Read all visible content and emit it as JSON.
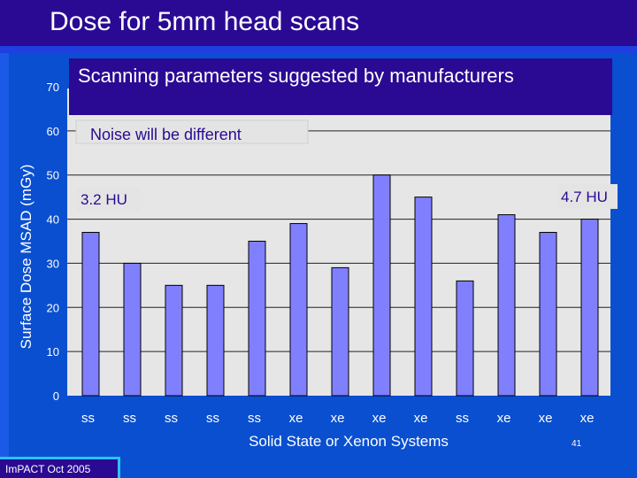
{
  "slide": {
    "title": "Dose for 5mm head scans",
    "footer": "ImPACT Oct 2005",
    "page_number": "41"
  },
  "colors": {
    "background": "#0a4fd0",
    "title_bar": "#2a0a93",
    "plot_area": "#e6e6e6",
    "bar_fill": "#8080ff",
    "annotation_box": "#2a0a93"
  },
  "chart_data": {
    "type": "bar",
    "categories": [
      "ss",
      "ss",
      "ss",
      "ss",
      "ss",
      "xe",
      "xe",
      "xe",
      "xe",
      "ss",
      "xe",
      "xe",
      "xe"
    ],
    "values": [
      37,
      30,
      25,
      25,
      35,
      39,
      29,
      50,
      45,
      26,
      41,
      37,
      40
    ],
    "xlabel": "Solid State or Xenon Systems",
    "ylabel": "Surface Dose MSAD  (mGy)",
    "ylim": [
      0,
      70
    ],
    "yticks": [
      0,
      10,
      20,
      30,
      40,
      50,
      60,
      70
    ],
    "grid": true,
    "annotations": {
      "header": "Scanning parameters suggested by manufacturers",
      "noise_note": "Noise will be different",
      "left_label": "3.2 HU",
      "right_label": "4.7 HU"
    }
  }
}
